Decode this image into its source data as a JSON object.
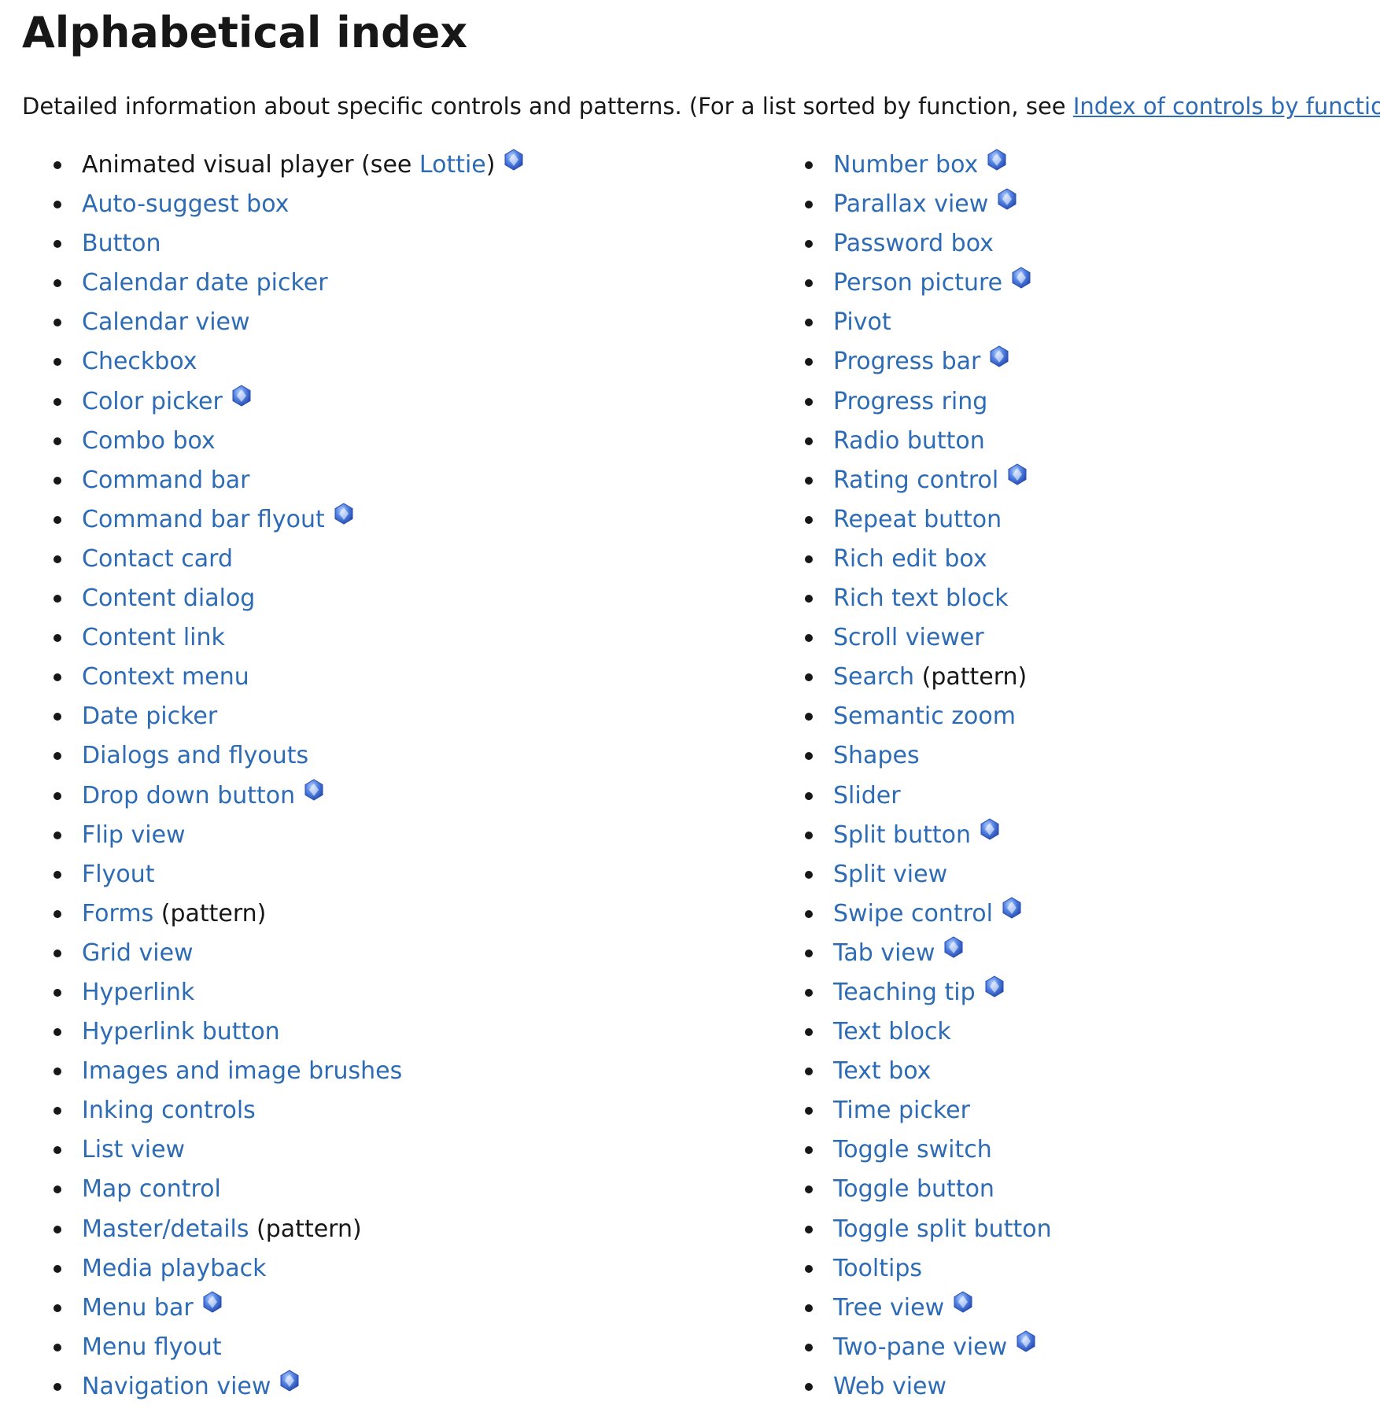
{
  "title": "Alphabetical index",
  "intro": {
    "text_before": "Detailed information about specific controls and patterns. (For a list sorted by function, see ",
    "link": "Index of controls by function",
    "text_after": ".)"
  },
  "badge_icon": "winui-badge-icon",
  "colors": {
    "link": "#2d6bb5",
    "text": "#171717"
  },
  "left_column": [
    {
      "prefix": "Animated visual player (see ",
      "label": "Lottie",
      "suffix": ")",
      "badge": true
    },
    {
      "prefix": "",
      "label": "Auto-suggest box",
      "suffix": "",
      "badge": false
    },
    {
      "prefix": "",
      "label": "Button",
      "suffix": "",
      "badge": false
    },
    {
      "prefix": "",
      "label": "Calendar date picker",
      "suffix": "",
      "badge": false
    },
    {
      "prefix": "",
      "label": "Calendar view",
      "suffix": "",
      "badge": false
    },
    {
      "prefix": "",
      "label": "Checkbox",
      "suffix": "",
      "badge": false
    },
    {
      "prefix": "",
      "label": "Color picker",
      "suffix": "",
      "badge": true
    },
    {
      "prefix": "",
      "label": "Combo box",
      "suffix": "",
      "badge": false
    },
    {
      "prefix": "",
      "label": "Command bar",
      "suffix": "",
      "badge": false
    },
    {
      "prefix": "",
      "label": "Command bar flyout",
      "suffix": "",
      "badge": true
    },
    {
      "prefix": "",
      "label": "Contact card",
      "suffix": "",
      "badge": false
    },
    {
      "prefix": "",
      "label": "Content dialog",
      "suffix": "",
      "badge": false
    },
    {
      "prefix": "",
      "label": "Content link",
      "suffix": "",
      "badge": false
    },
    {
      "prefix": "",
      "label": "Context menu",
      "suffix": "",
      "badge": false
    },
    {
      "prefix": "",
      "label": "Date picker",
      "suffix": "",
      "badge": false
    },
    {
      "prefix": "",
      "label": "Dialogs and flyouts",
      "suffix": "",
      "badge": false
    },
    {
      "prefix": "",
      "label": "Drop down button",
      "suffix": "",
      "badge": true
    },
    {
      "prefix": "",
      "label": "Flip view",
      "suffix": "",
      "badge": false
    },
    {
      "prefix": "",
      "label": "Flyout",
      "suffix": "",
      "badge": false
    },
    {
      "prefix": "",
      "label": "Forms",
      "suffix": " (pattern)",
      "badge": false
    },
    {
      "prefix": "",
      "label": "Grid view",
      "suffix": "",
      "badge": false
    },
    {
      "prefix": "",
      "label": "Hyperlink",
      "suffix": "",
      "badge": false
    },
    {
      "prefix": "",
      "label": "Hyperlink button",
      "suffix": "",
      "badge": false
    },
    {
      "prefix": "",
      "label": "Images and image brushes",
      "suffix": "",
      "badge": false
    },
    {
      "prefix": "",
      "label": "Inking controls",
      "suffix": "",
      "badge": false
    },
    {
      "prefix": "",
      "label": "List view",
      "suffix": "",
      "badge": false
    },
    {
      "prefix": "",
      "label": "Map control",
      "suffix": "",
      "badge": false
    },
    {
      "prefix": "",
      "label": "Master/details",
      "suffix": " (pattern)",
      "badge": false
    },
    {
      "prefix": "",
      "label": "Media playback",
      "suffix": "",
      "badge": false
    },
    {
      "prefix": "",
      "label": "Menu bar",
      "suffix": "",
      "badge": true
    },
    {
      "prefix": "",
      "label": "Menu flyout",
      "suffix": "",
      "badge": false
    },
    {
      "prefix": "",
      "label": "Navigation view",
      "suffix": "",
      "badge": true
    }
  ],
  "right_column": [
    {
      "prefix": "",
      "label": "Number box",
      "suffix": "",
      "badge": true
    },
    {
      "prefix": "",
      "label": "Parallax view",
      "suffix": "",
      "badge": true
    },
    {
      "prefix": "",
      "label": "Password box",
      "suffix": "",
      "badge": false
    },
    {
      "prefix": "",
      "label": "Person picture",
      "suffix": "",
      "badge": true
    },
    {
      "prefix": "",
      "label": "Pivot",
      "suffix": "",
      "badge": false
    },
    {
      "prefix": "",
      "label": "Progress bar",
      "suffix": "",
      "badge": true
    },
    {
      "prefix": "",
      "label": "Progress ring",
      "suffix": "",
      "badge": false
    },
    {
      "prefix": "",
      "label": "Radio button",
      "suffix": "",
      "badge": false
    },
    {
      "prefix": "",
      "label": "Rating control",
      "suffix": "",
      "badge": true
    },
    {
      "prefix": "",
      "label": "Repeat button",
      "suffix": "",
      "badge": false
    },
    {
      "prefix": "",
      "label": "Rich edit box",
      "suffix": "",
      "badge": false
    },
    {
      "prefix": "",
      "label": "Rich text block",
      "suffix": "",
      "badge": false
    },
    {
      "prefix": "",
      "label": "Scroll viewer",
      "suffix": "",
      "badge": false
    },
    {
      "prefix": "",
      "label": "Search",
      "suffix": " (pattern)",
      "badge": false
    },
    {
      "prefix": "",
      "label": "Semantic zoom",
      "suffix": "",
      "badge": false
    },
    {
      "prefix": "",
      "label": "Shapes",
      "suffix": "",
      "badge": false
    },
    {
      "prefix": "",
      "label": "Slider",
      "suffix": "",
      "badge": false
    },
    {
      "prefix": "",
      "label": "Split button",
      "suffix": "",
      "badge": true
    },
    {
      "prefix": "",
      "label": "Split view",
      "suffix": "",
      "badge": false
    },
    {
      "prefix": "",
      "label": "Swipe control",
      "suffix": "",
      "badge": true
    },
    {
      "prefix": "",
      "label": "Tab view",
      "suffix": "",
      "badge": true
    },
    {
      "prefix": "",
      "label": "Teaching tip",
      "suffix": "",
      "badge": true
    },
    {
      "prefix": "",
      "label": "Text block",
      "suffix": "",
      "badge": false
    },
    {
      "prefix": "",
      "label": "Text box",
      "suffix": "",
      "badge": false
    },
    {
      "prefix": "",
      "label": "Time picker",
      "suffix": "",
      "badge": false
    },
    {
      "prefix": "",
      "label": "Toggle switch",
      "suffix": "",
      "badge": false
    },
    {
      "prefix": "",
      "label": "Toggle button",
      "suffix": "",
      "badge": false
    },
    {
      "prefix": "",
      "label": "Toggle split button",
      "suffix": "",
      "badge": false
    },
    {
      "prefix": "",
      "label": "Tooltips",
      "suffix": "",
      "badge": false
    },
    {
      "prefix": "",
      "label": "Tree view",
      "suffix": "",
      "badge": true
    },
    {
      "prefix": "",
      "label": "Two-pane view",
      "suffix": "",
      "badge": true
    },
    {
      "prefix": "",
      "label": "Web view",
      "suffix": "",
      "badge": false
    }
  ]
}
